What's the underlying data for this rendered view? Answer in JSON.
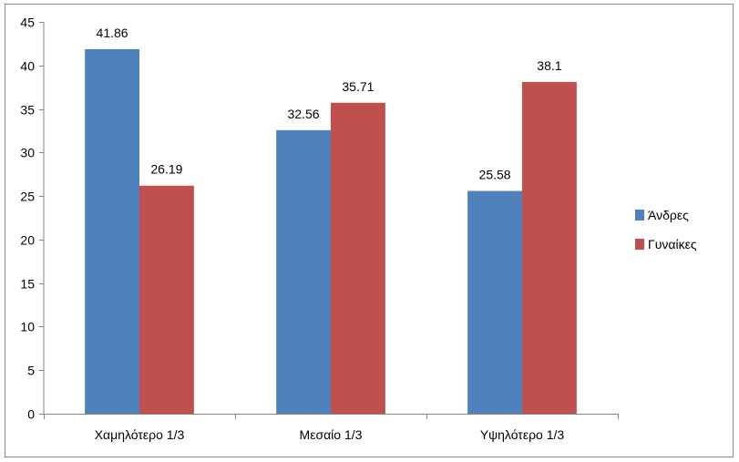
{
  "chart_data": {
    "type": "bar",
    "categories": [
      "Χαμηλότερο 1/3",
      "Μεσαίο 1/3",
      "Υψηλότερο 1/3"
    ],
    "series": [
      {
        "name": "Άνδρες",
        "values": [
          41.86,
          32.56,
          25.58
        ],
        "color": "#4F81BD"
      },
      {
        "name": "Γυναίκες",
        "values": [
          26.19,
          35.71,
          38.1
        ],
        "color": "#C0504D"
      }
    ],
    "data_labels": [
      [
        "41.86",
        "32.56",
        "25.58"
      ],
      [
        "26.19",
        "35.71",
        "38.1"
      ]
    ],
    "ylim": [
      0,
      45
    ],
    "yticks": [
      0,
      5,
      10,
      15,
      20,
      25,
      30,
      35,
      40,
      45
    ],
    "ytick_labels": [
      "0",
      "5",
      "10",
      "15",
      "20",
      "25",
      "30",
      "35",
      "40",
      "45"
    ],
    "grid": false,
    "legend_position": "right"
  }
}
